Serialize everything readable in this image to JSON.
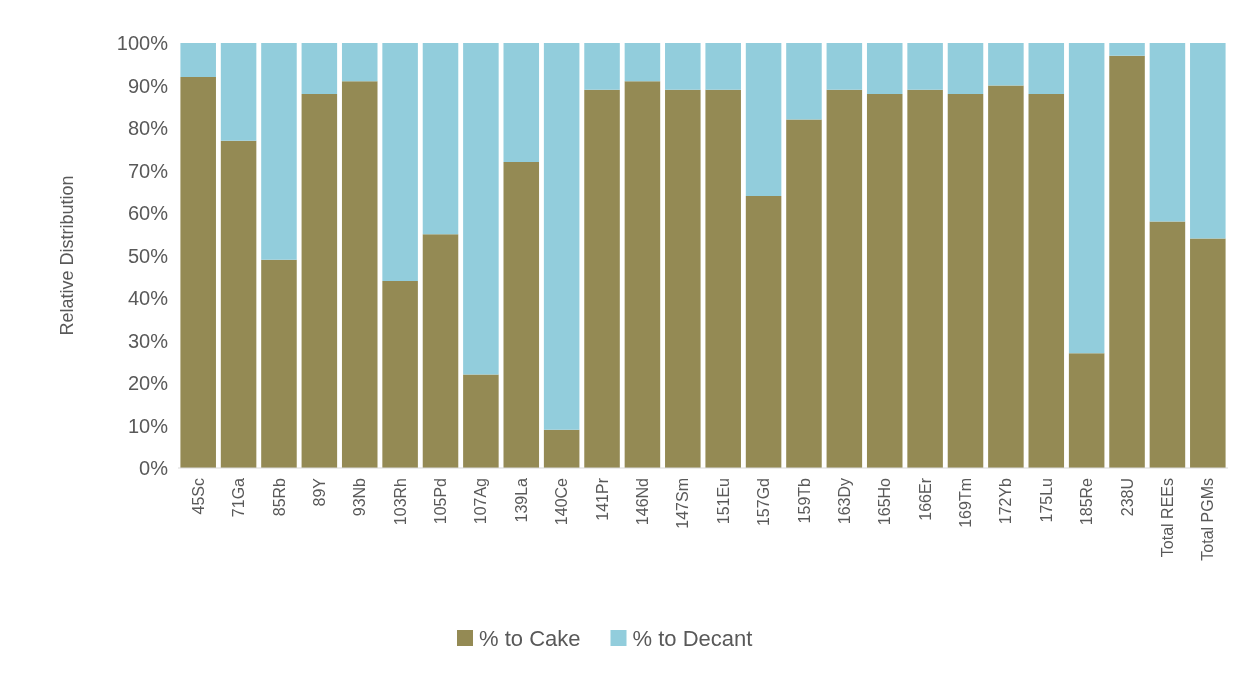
{
  "chart_data": {
    "type": "bar",
    "stacked": true,
    "ylabel": "Relative Distribution",
    "categories": [
      "45Sc",
      "71Ga",
      "85Rb",
      "89Y",
      "93Nb",
      "103Rh",
      "105Pd",
      "107Ag",
      "139La",
      "140Ce",
      "141Pr",
      "146Nd",
      "147Sm",
      "151Eu",
      "157Gd",
      "159Tb",
      "163Dy",
      "165Ho",
      "166Er",
      "169Tm",
      "172Yb",
      "175Lu",
      "185Re",
      "238U",
      "Total REEs",
      "Total PGMs"
    ],
    "series": [
      {
        "name": "% to Cake",
        "color": "#948a54",
        "values": [
          92,
          77,
          49,
          88,
          91,
          44,
          55,
          22,
          72,
          9,
          89,
          91,
          89,
          89,
          64,
          82,
          89,
          88,
          89,
          88,
          90,
          88,
          27,
          97,
          58,
          54
        ]
      },
      {
        "name": "% to Decant",
        "color": "#92cddc",
        "values": [
          8,
          23,
          51,
          12,
          9,
          56,
          45,
          78,
          28,
          91,
          11,
          9,
          11,
          11,
          36,
          18,
          11,
          12,
          11,
          12,
          10,
          12,
          73,
          3,
          42,
          46
        ]
      }
    ],
    "ylim": [
      0,
      100
    ],
    "yticks": [
      {
        "value": 0,
        "label": "0%"
      },
      {
        "value": 10,
        "label": "10%"
      },
      {
        "value": 20,
        "label": "20%"
      },
      {
        "value": 30,
        "label": "30%"
      },
      {
        "value": 40,
        "label": "40%"
      },
      {
        "value": 50,
        "label": "50%"
      },
      {
        "value": 60,
        "label": "60%"
      },
      {
        "value": 70,
        "label": "70%"
      },
      {
        "value": 80,
        "label": "80%"
      },
      {
        "value": 90,
        "label": "90%"
      },
      {
        "value": 100,
        "label": "100%"
      }
    ],
    "legend": "bottom"
  }
}
